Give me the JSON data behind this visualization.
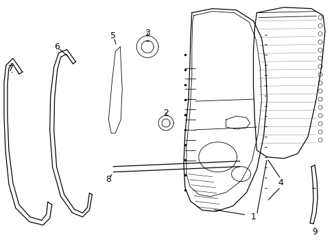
{
  "background_color": "#ffffff",
  "line_color": "#000000",
  "fig_width": 4.9,
  "fig_height": 3.6,
  "dpi": 100,
  "lw": 0.9,
  "lw_thin": 0.6,
  "lw_thick": 1.2
}
